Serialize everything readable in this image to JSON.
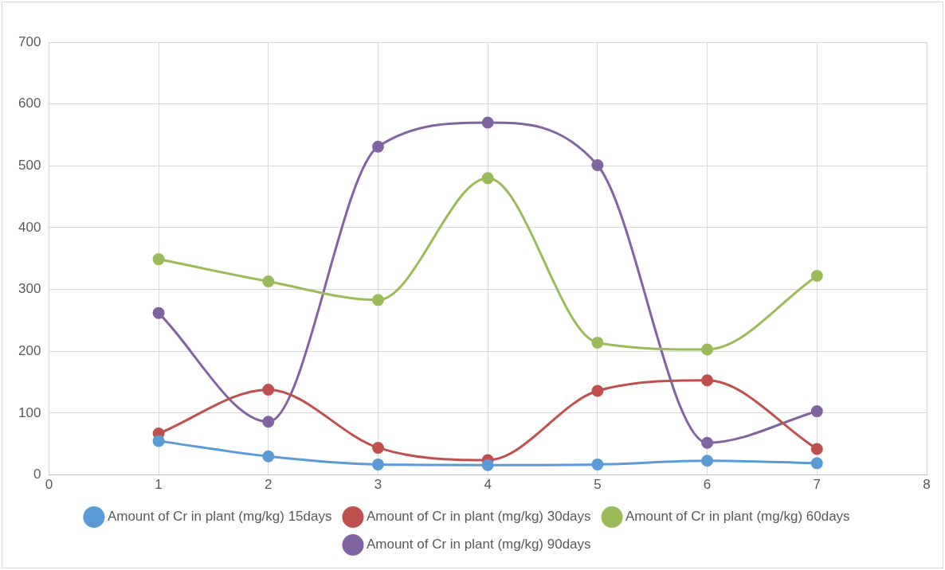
{
  "chart_data": {
    "type": "line",
    "x": [
      1,
      2,
      3,
      4,
      5,
      6,
      7
    ],
    "series": [
      {
        "name": "Amount of Cr in plant (mg/kg) 15days",
        "color": "#5b9bd5",
        "values": [
          55,
          30,
          17,
          16,
          17,
          23,
          19
        ]
      },
      {
        "name": "Amount of Cr in plant (mg/kg) 30days",
        "color": "#c0504d",
        "values": [
          67,
          138,
          44,
          24,
          136,
          153,
          42
        ]
      },
      {
        "name": "Amount of Cr in plant (mg/kg) 60days",
        "color": "#9bbb59",
        "values": [
          349,
          313,
          283,
          480,
          214,
          203,
          322
        ]
      },
      {
        "name": "Amount of Cr in plant (mg/kg) 90days",
        "color": "#8064a2",
        "values": [
          262,
          86,
          531,
          570,
          501,
          52,
          103
        ]
      }
    ],
    "xlim": [
      0,
      8
    ],
    "xticks": [
      0,
      1,
      2,
      3,
      4,
      5,
      6,
      7,
      8
    ],
    "ylim": [
      0,
      700
    ],
    "yticks": [
      0,
      100,
      200,
      300,
      400,
      500,
      600,
      700
    ],
    "grid": true,
    "legend": "bottom",
    "marker": "circle",
    "line_style": "solid"
  }
}
